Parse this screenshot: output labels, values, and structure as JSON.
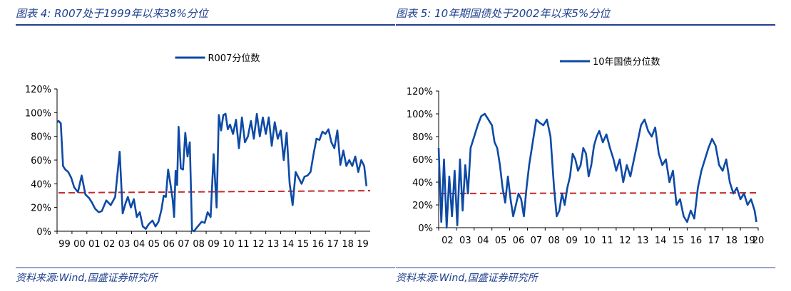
{
  "colors": {
    "title": "#1f3f8f",
    "series": "#0d4aa6",
    "reference": "#c62828"
  },
  "chart_data": [
    {
      "type": "line",
      "title": "图表 4:  R007处于1999年以来38%分位",
      "source": "资料来源:Wind,国盛证券研究所",
      "legend": "R007分位数",
      "legend_position": "top-center",
      "grid": false,
      "ylim": [
        0,
        1.2
      ],
      "yticks": [
        "0%",
        "20%",
        "40%",
        "60%",
        "80%",
        "100%",
        "120%"
      ],
      "xlim": [
        1999.0,
        2020.0
      ],
      "xticks": [
        "99",
        "00",
        "01",
        "02",
        "03",
        "04",
        "05",
        "06",
        "07",
        "08",
        "09",
        "10",
        "11",
        "12",
        "13",
        "14",
        "15",
        "16",
        "17",
        "18",
        "19"
      ],
      "reference_line": {
        "value": 0.33,
        "style": "dashed"
      },
      "series": [
        {
          "name": "R007分位数",
          "x": [
            1999.0,
            1999.1,
            1999.25,
            1999.4,
            1999.55,
            1999.75,
            1999.95,
            2000.15,
            2000.4,
            2000.65,
            2000.9,
            2001.15,
            2001.35,
            2001.55,
            2001.8,
            2002.0,
            2002.3,
            2002.6,
            2002.9,
            2003.2,
            2003.4,
            2003.6,
            2003.75,
            2003.95,
            2004.15,
            2004.35,
            2004.55,
            2004.75,
            2004.95,
            2005.15,
            2005.4,
            2005.6,
            2005.8,
            2006.0,
            2006.15,
            2006.3,
            2006.45,
            2006.6,
            2006.75,
            2006.85,
            2006.95,
            2007.05,
            2007.15,
            2007.3,
            2007.45,
            2007.6,
            2007.75,
            2007.9,
            2008.05,
            2008.2,
            2008.3,
            2008.5,
            2008.7,
            2008.9,
            2009.1,
            2009.3,
            2009.5,
            2009.7,
            2009.85,
            2010.0,
            2010.15,
            2010.3,
            2010.45,
            2010.6,
            2010.8,
            2011.0,
            2011.2,
            2011.4,
            2011.6,
            2011.8,
            2012.0,
            2012.2,
            2012.4,
            2012.6,
            2012.8,
            2013.0,
            2013.2,
            2013.4,
            2013.6,
            2013.8,
            2014.0,
            2014.2,
            2014.4,
            2014.6,
            2014.8,
            2015.0,
            2015.2,
            2015.4,
            2015.6,
            2015.8,
            2016.0,
            2016.2,
            2016.4,
            2016.6,
            2016.8,
            2017.0,
            2017.2,
            2017.4,
            2017.6,
            2017.8,
            2018.0,
            2018.2,
            2018.4,
            2018.6,
            2018.8,
            2019.0,
            2019.2,
            2019.4,
            2019.6,
            2019.75
          ],
          "y": [
            0.92,
            0.93,
            0.91,
            0.55,
            0.52,
            0.5,
            0.45,
            0.37,
            0.33,
            0.47,
            0.31,
            0.28,
            0.24,
            0.19,
            0.16,
            0.17,
            0.26,
            0.22,
            0.29,
            0.67,
            0.15,
            0.24,
            0.29,
            0.2,
            0.27,
            0.12,
            0.16,
            0.04,
            0.02,
            0.06,
            0.09,
            0.04,
            0.08,
            0.18,
            0.3,
            0.29,
            0.52,
            0.4,
            0.27,
            0.12,
            0.51,
            0.39,
            0.88,
            0.53,
            0.52,
            0.83,
            0.63,
            0.75,
            0.01,
            0.0,
            0.02,
            0.05,
            0.08,
            0.07,
            0.16,
            0.12,
            0.65,
            0.2,
            0.98,
            0.85,
            0.98,
            0.99,
            0.86,
            0.9,
            0.82,
            0.94,
            0.7,
            0.96,
            0.75,
            0.8,
            0.93,
            0.78,
            0.99,
            0.8,
            0.96,
            0.82,
            0.96,
            0.72,
            0.92,
            0.78,
            0.85,
            0.6,
            0.83,
            0.4,
            0.22,
            0.5,
            0.45,
            0.4,
            0.46,
            0.47,
            0.5,
            0.65,
            0.78,
            0.77,
            0.84,
            0.82,
            0.86,
            0.75,
            0.7,
            0.85,
            0.56,
            0.68,
            0.55,
            0.6,
            0.55,
            0.63,
            0.5,
            0.6,
            0.55,
            0.38
          ]
        }
      ]
    },
    {
      "type": "line",
      "title": "图表 5:  10年期国债处于2002年以来5%分位",
      "source": "资料来源:Wind,国盛证券研究所",
      "legend": "10年国债分位数",
      "legend_position": "top-center",
      "grid": false,
      "ylim": [
        0,
        1.2
      ],
      "yticks": [
        "0%",
        "20%",
        "40%",
        "60%",
        "80%",
        "100%",
        "120%"
      ],
      "xlim": [
        2002.0,
        2020.0
      ],
      "xticks": [
        "02",
        "03",
        "04",
        "05",
        "06",
        "07",
        "08",
        "09",
        "10",
        "11",
        "12",
        "13",
        "14",
        "15",
        "16",
        "17",
        "18",
        "19",
        "20"
      ],
      "reference_line": {
        "value": 0.3,
        "style": "dashed"
      },
      "series": [
        {
          "name": "10年国债分位数",
          "x": [
            2002.0,
            2002.15,
            2002.3,
            2002.45,
            2002.6,
            2002.75,
            2002.9,
            2003.05,
            2003.2,
            2003.35,
            2003.5,
            2003.65,
            2003.8,
            2004.0,
            2004.2,
            2004.4,
            2004.6,
            2004.8,
            2005.0,
            2005.15,
            2005.3,
            2005.45,
            2005.6,
            2005.75,
            2005.9,
            2006.05,
            2006.2,
            2006.35,
            2006.5,
            2006.65,
            2006.8,
            2006.95,
            2007.1,
            2007.3,
            2007.5,
            2007.7,
            2007.9,
            2008.1,
            2008.3,
            2008.5,
            2008.65,
            2008.8,
            2008.95,
            2009.1,
            2009.25,
            2009.4,
            2009.55,
            2009.7,
            2009.85,
            2010.0,
            2010.15,
            2010.3,
            2010.45,
            2010.6,
            2010.75,
            2010.9,
            2011.05,
            2011.25,
            2011.45,
            2011.65,
            2011.85,
            2012.0,
            2012.2,
            2012.4,
            2012.6,
            2012.8,
            2013.0,
            2013.2,
            2013.4,
            2013.6,
            2013.8,
            2014.0,
            2014.2,
            2014.4,
            2014.6,
            2014.8,
            2015.0,
            2015.2,
            2015.4,
            2015.6,
            2015.8,
            2016.0,
            2016.2,
            2016.4,
            2016.6,
            2016.8,
            2017.0,
            2017.2,
            2017.4,
            2017.6,
            2017.8,
            2018.0,
            2018.2,
            2018.4,
            2018.6,
            2018.8,
            2019.0,
            2019.2,
            2019.4,
            2019.6,
            2019.8,
            2019.9
          ],
          "y": [
            0.7,
            0.05,
            0.6,
            0.0,
            0.45,
            0.1,
            0.5,
            0.02,
            0.6,
            0.15,
            0.55,
            0.3,
            0.7,
            0.8,
            0.9,
            0.98,
            1.0,
            0.95,
            0.9,
            0.75,
            0.7,
            0.55,
            0.35,
            0.22,
            0.45,
            0.25,
            0.1,
            0.2,
            0.3,
            0.25,
            0.1,
            0.35,
            0.55,
            0.75,
            0.95,
            0.92,
            0.9,
            0.95,
            0.8,
            0.35,
            0.1,
            0.15,
            0.3,
            0.2,
            0.35,
            0.45,
            0.65,
            0.6,
            0.5,
            0.55,
            0.7,
            0.65,
            0.45,
            0.55,
            0.72,
            0.8,
            0.85,
            0.75,
            0.82,
            0.7,
            0.6,
            0.5,
            0.6,
            0.4,
            0.55,
            0.45,
            0.6,
            0.75,
            0.9,
            0.95,
            0.85,
            0.8,
            0.88,
            0.65,
            0.55,
            0.6,
            0.4,
            0.5,
            0.2,
            0.25,
            0.1,
            0.05,
            0.15,
            0.08,
            0.35,
            0.5,
            0.6,
            0.7,
            0.78,
            0.72,
            0.55,
            0.5,
            0.6,
            0.4,
            0.3,
            0.35,
            0.25,
            0.3,
            0.2,
            0.25,
            0.15,
            0.05
          ]
        }
      ]
    }
  ]
}
